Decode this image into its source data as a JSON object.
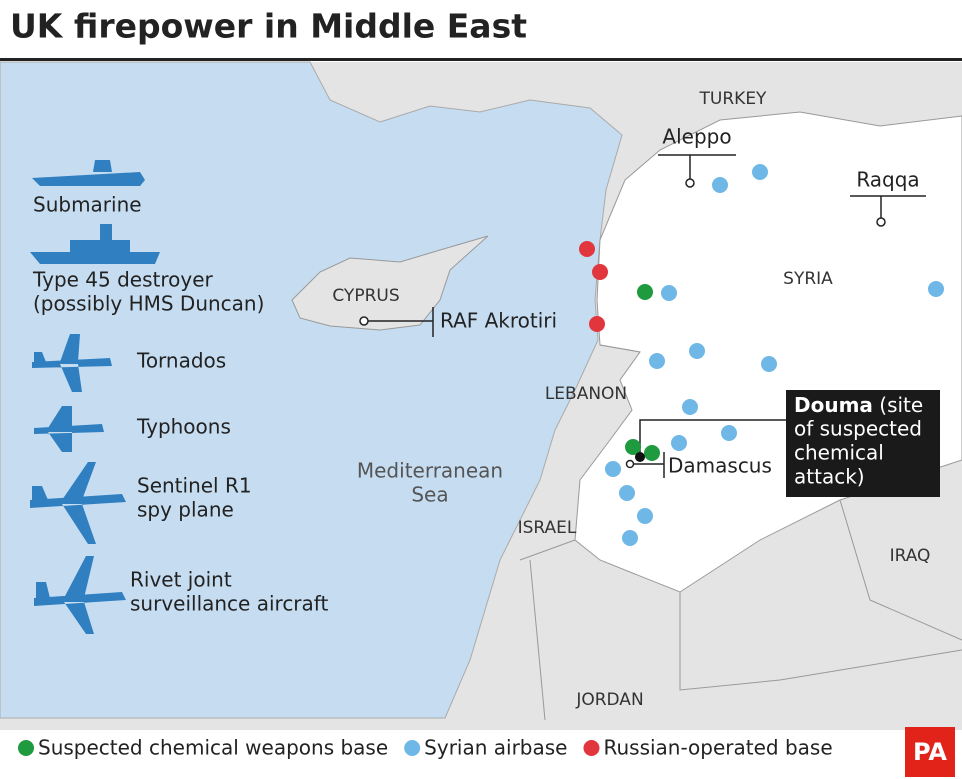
{
  "title": "UK firepower in Middle East",
  "assets": [
    {
      "lines": [
        "Submarine"
      ]
    },
    {
      "lines": [
        "Type 45 destroyer",
        "(possibly HMS Duncan)"
      ]
    },
    {
      "lines": [
        "Tornados"
      ]
    },
    {
      "lines": [
        "Typhoons"
      ]
    },
    {
      "lines": [
        "Sentinel R1",
        "spy plane"
      ]
    },
    {
      "lines": [
        "Rivet joint",
        "surveillance aircraft"
      ]
    }
  ],
  "places": [
    "TURKEY",
    "Aleppo",
    "Raqqa",
    "SYRIA",
    "CYPRUS",
    "RAF Akrotiri",
    "LEBANON",
    "Mediterranean",
    "Sea",
    "ISRAEL",
    "Damascus",
    "IRAQ",
    "JORDAN"
  ],
  "callout": {
    "name": "Douma",
    "lines": [
      "(site",
      "of suspected",
      "chemical",
      "attack)"
    ]
  },
  "key": [
    {
      "label": "Suspected chemical weapons base",
      "color": "#1f9a3e"
    },
    {
      "label": "Syrian airbase",
      "color": "#6fb7e6"
    },
    {
      "label": "Russian-operated base",
      "color": "#e2363e"
    }
  ],
  "logo": "PA"
}
